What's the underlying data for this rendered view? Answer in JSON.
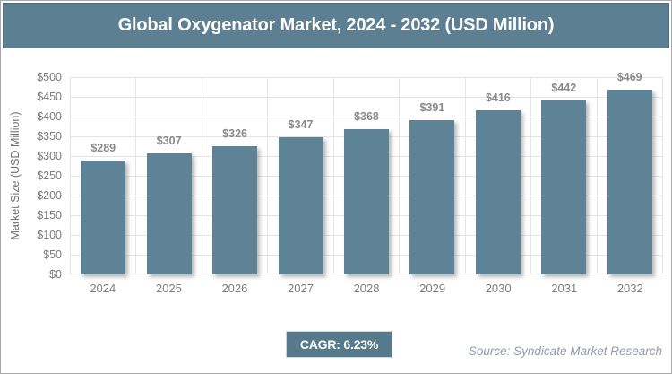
{
  "header": {
    "title": "Global Oxygenator Market, 2024 - 2032 (USD Million)"
  },
  "chart_data": {
    "type": "bar",
    "title": "Global Oxygenator Market, 2024 - 2032 (USD Million)",
    "categories": [
      "2024",
      "2025",
      "2026",
      "2027",
      "2028",
      "2029",
      "2030",
      "2031",
      "2032"
    ],
    "values": [
      289,
      307,
      326,
      347,
      368,
      391,
      416,
      442,
      469
    ],
    "value_labels": [
      "$289",
      "$307",
      "$326",
      "$347",
      "$368",
      "$391",
      "$416",
      "$442",
      "$469"
    ],
    "xlabel": "",
    "ylabel": "Market Size (USD Million)",
    "ylim": [
      0,
      500
    ],
    "ytick_step": 50,
    "ytick_labels": [
      "$0",
      "$50",
      "$100",
      "$150",
      "$200",
      "$250",
      "$300",
      "$350",
      "$400",
      "$450",
      "$500"
    ],
    "grid": true,
    "legend": false
  },
  "footer": {
    "cagr_label": "CAGR: 6.23%",
    "source": "Source: Syndicate Market Research"
  },
  "colors": {
    "title_bar": "#5d7f92",
    "bar_fill": "#5e8396",
    "badge": "#56798c",
    "gridline": "#e4e4e4",
    "axis_text": "#7a7a7a"
  }
}
